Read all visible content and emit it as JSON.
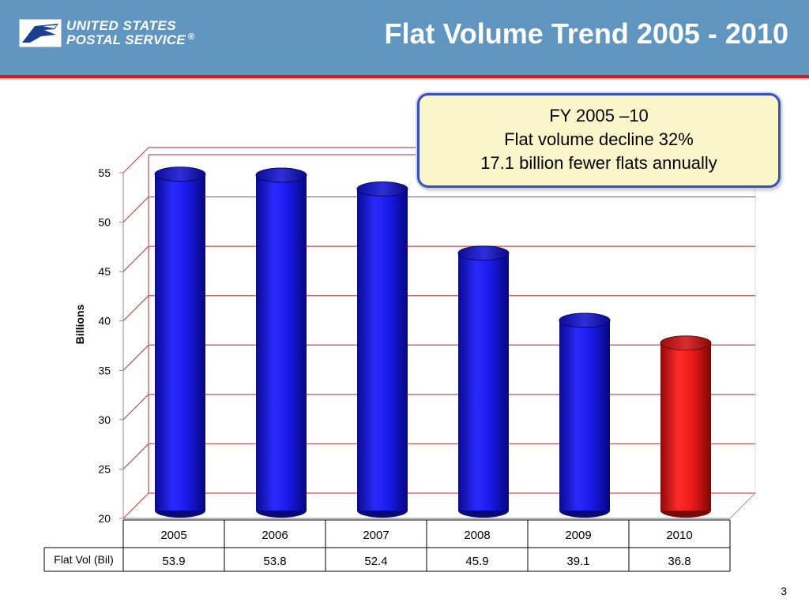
{
  "header": {
    "logo_line1": "UNITED STATES",
    "logo_line2": "POSTAL SERVICE",
    "logo_reg": "®",
    "title": "Flat Volume Trend 2005 - 2010",
    "bg_color": "#5f95bf",
    "rule_color": "#d01c1c"
  },
  "callout": {
    "line1": "FY 2005 –10",
    "line2": "Flat volume decline 32%",
    "line3": "17.1 billion fewer flats annually"
  },
  "chart_data": {
    "type": "bar",
    "title": "",
    "xlabel": "",
    "ylabel": "Billions",
    "ylim": [
      20,
      55
    ],
    "yticks": [
      20,
      25,
      30,
      35,
      40,
      45,
      50,
      55
    ],
    "grid": true,
    "categories": [
      "2005",
      "2006",
      "2007",
      "2008",
      "2009",
      "2010"
    ],
    "series": [
      {
        "name": "Flat Vol (Bil)",
        "values": [
          53.9,
          53.8,
          52.4,
          45.9,
          39.1,
          36.8
        ],
        "value_labels": [
          "53.9",
          "53.8",
          "52.4",
          "45.9",
          "39.1",
          "36.8"
        ]
      }
    ],
    "colors": {
      "bar": "#1a1ae0",
      "highlight": "#e01818",
      "highlight_category": "2010",
      "gridline": "#c0504d"
    }
  },
  "slide_number": "3"
}
